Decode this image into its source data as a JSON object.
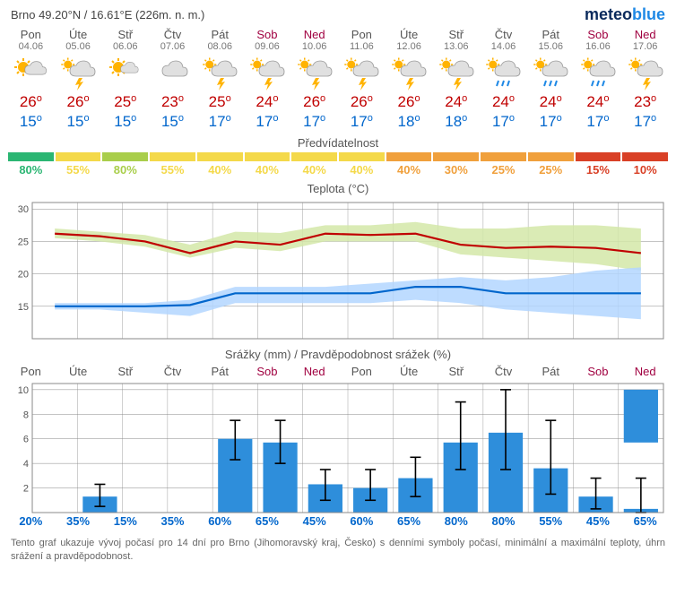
{
  "location": "Brno  49.20°N / 16.61°E (226m. n. m.)",
  "brand": {
    "a": "meteo",
    "b": "blue"
  },
  "days": [
    {
      "name": "Pon",
      "date": "04.06",
      "wk": false,
      "hi": 26,
      "lo": 15,
      "icon": "sun-cloud"
    },
    {
      "name": "Úte",
      "date": "05.06",
      "wk": false,
      "hi": 26,
      "lo": 15,
      "icon": "storm"
    },
    {
      "name": "Stř",
      "date": "06.06",
      "wk": false,
      "hi": 25,
      "lo": 15,
      "icon": "sun-small-cloud"
    },
    {
      "name": "Čtv",
      "date": "07.06",
      "wk": false,
      "hi": 23,
      "lo": 15,
      "icon": "cloud"
    },
    {
      "name": "Pát",
      "date": "08.06",
      "wk": false,
      "hi": 25,
      "lo": 17,
      "icon": "storm"
    },
    {
      "name": "Sob",
      "date": "09.06",
      "wk": true,
      "hi": 24,
      "lo": 17,
      "icon": "storm"
    },
    {
      "name": "Ned",
      "date": "10.06",
      "wk": true,
      "hi": 26,
      "lo": 17,
      "icon": "storm"
    },
    {
      "name": "Pon",
      "date": "11.06",
      "wk": false,
      "hi": 26,
      "lo": 17,
      "icon": "storm"
    },
    {
      "name": "Úte",
      "date": "12.06",
      "wk": false,
      "hi": 26,
      "lo": 18,
      "icon": "storm"
    },
    {
      "name": "Stř",
      "date": "13.06",
      "wk": false,
      "hi": 24,
      "lo": 18,
      "icon": "storm"
    },
    {
      "name": "Čtv",
      "date": "14.06",
      "wk": false,
      "hi": 24,
      "lo": 17,
      "icon": "rain"
    },
    {
      "name": "Pát",
      "date": "15.06",
      "wk": false,
      "hi": 24,
      "lo": 17,
      "icon": "rain"
    },
    {
      "name": "Sob",
      "date": "16.06",
      "wk": true,
      "hi": 24,
      "lo": 17,
      "icon": "rain"
    },
    {
      "name": "Ned",
      "date": "17.06",
      "wk": true,
      "hi": 23,
      "lo": 17,
      "icon": "storm"
    }
  ],
  "predict_title": "Předvídatelnost",
  "predict": [
    {
      "v": 80,
      "c": "#2bb673"
    },
    {
      "v": 55,
      "c": "#f4d94a"
    },
    {
      "v": 80,
      "c": "#a9ce4b"
    },
    {
      "v": 55,
      "c": "#f4d94a"
    },
    {
      "v": 40,
      "c": "#f4d94a"
    },
    {
      "v": 40,
      "c": "#f4d94a"
    },
    {
      "v": 40,
      "c": "#f4d94a"
    },
    {
      "v": 40,
      "c": "#f4d94a"
    },
    {
      "v": 40,
      "c": "#f0a03c"
    },
    {
      "v": 30,
      "c": "#f0a03c"
    },
    {
      "v": 25,
      "c": "#f0a03c"
    },
    {
      "v": 25,
      "c": "#f0a03c"
    },
    {
      "v": 15,
      "c": "#d94026"
    },
    {
      "v": 10,
      "c": "#d94026"
    }
  ],
  "temp_chart": {
    "title": "Teplota (°C)",
    "ylim": [
      10,
      31
    ],
    "yticks": [
      15,
      20,
      25,
      30
    ],
    "hi_line": [
      26.2,
      25.8,
      25.0,
      23.2,
      25.0,
      24.5,
      26.2,
      26.0,
      26.2,
      24.5,
      24.0,
      24.2,
      24.0,
      23.2
    ],
    "lo_line": [
      15.0,
      15.0,
      15.0,
      15.2,
      17.0,
      17.0,
      17.0,
      17.0,
      18.0,
      18.0,
      17.0,
      17.0,
      17.0,
      17.0
    ],
    "hi_band_top": [
      27.0,
      26.5,
      26.0,
      24.5,
      26.5,
      26.3,
      27.5,
      27.5,
      28.0,
      27.0,
      27.0,
      27.5,
      27.5,
      27.0
    ],
    "hi_band_bot": [
      25.5,
      25.0,
      24.2,
      22.5,
      24.0,
      23.5,
      25.0,
      25.0,
      25.0,
      23.0,
      22.5,
      22.0,
      21.5,
      20.5
    ],
    "lo_band_top": [
      15.5,
      15.5,
      15.5,
      16.0,
      18.0,
      18.0,
      18.0,
      18.5,
      19.0,
      19.5,
      19.0,
      19.5,
      20.5,
      21.0
    ],
    "lo_band_bot": [
      14.5,
      14.5,
      14.0,
      13.5,
      15.5,
      15.5,
      15.5,
      15.5,
      16.0,
      15.5,
      14.5,
      14.0,
      13.5,
      13.0
    ],
    "hi_color": "#c00000",
    "lo_color": "#0066cc",
    "hi_band_color": "#d4e8a8",
    "lo_band_color": "#b3d6ff",
    "grid_color": "#888",
    "bg": "#ffffff"
  },
  "precip_title": "Srážky (mm) / Pravděpodobnost srážek (%)",
  "precip_chart": {
    "ylim": [
      0,
      10.5
    ],
    "yticks": [
      2,
      4,
      6,
      8,
      10
    ],
    "bars": [
      0,
      1.3,
      0,
      0,
      6.0,
      5.7,
      2.3,
      2.0,
      2.8,
      5.7,
      6.5,
      3.6,
      1.3,
      0.3
    ],
    "err_lo": [
      0,
      0.5,
      0,
      0,
      4.3,
      4.0,
      1.0,
      1.0,
      1.3,
      3.5,
      3.5,
      1.5,
      0.3,
      0
    ],
    "err_hi": [
      0,
      2.3,
      0,
      0,
      7.5,
      7.5,
      3.5,
      3.5,
      4.5,
      9.0,
      10.0,
      7.5,
      2.8,
      2.8
    ],
    "extra": {
      "idx": 13,
      "val": 5.7
    },
    "bar_color": "#2e8edb",
    "err_color": "#000",
    "prob": [
      20,
      35,
      15,
      35,
      60,
      65,
      45,
      60,
      65,
      80,
      80,
      55,
      45,
      65
    ]
  },
  "footer": "Tento graf ukazuje vývoj počasí pro 14 dní pro Brno (Jihomoravský kraj, Česko) s denními symboly počasí, minimální a maximální teploty, úhrn srážení a pravděpodobnost."
}
